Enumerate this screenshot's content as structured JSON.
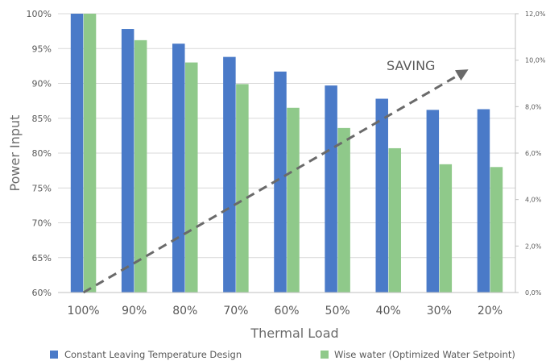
{
  "chart_data": {
    "type": "bar",
    "categories": [
      "100%",
      "90%",
      "80%",
      "70%",
      "60%",
      "50%",
      "40%",
      "30%",
      "20%"
    ],
    "series": [
      {
        "name": "Constant Leaving Temperature Design",
        "values": [
          100,
          97.8,
          95.7,
          93.8,
          91.7,
          89.7,
          87.8,
          86.2,
          86.3
        ]
      },
      {
        "name": "Wise water (Optimized Water Setpoint)",
        "values": [
          100,
          96.2,
          93.0,
          89.9,
          86.5,
          83.6,
          80.7,
          78.4,
          78.0
        ]
      }
    ],
    "colors": [
      "#4a7ac8",
      "#8fc98a"
    ],
    "xlabel": "Thermal Load",
    "ylabel": "Power Input",
    "ylim": [
      60,
      100
    ],
    "y_ticks": [
      "60%",
      "65%",
      "70%",
      "75%",
      "80%",
      "85%",
      "90%",
      "95%",
      "100%"
    ],
    "y2lim": [
      0,
      12
    ],
    "y2_ticks": [
      "0,0%",
      "2,0%",
      "4,0%",
      "6,0%",
      "8,0%",
      "10,0%",
      "12,0%"
    ],
    "grid": true,
    "legend": "bottom",
    "annotation": {
      "label": "SAVING",
      "trend_from": {
        "category": "100%",
        "y2": 0
      },
      "trend_to": {
        "category": "20%",
        "y2": 9.5
      }
    }
  }
}
